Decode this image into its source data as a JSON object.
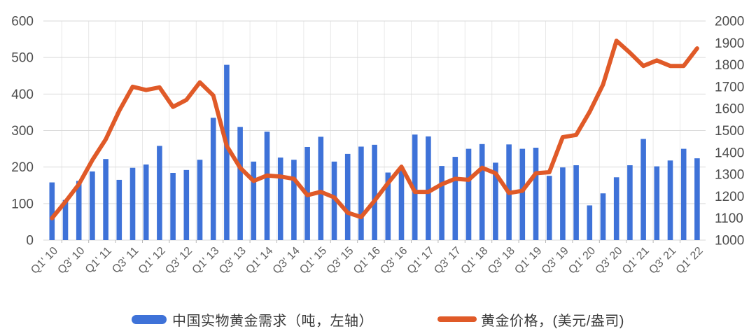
{
  "page": {
    "background": "#ffffff"
  },
  "legend": {
    "items": [
      {
        "label": "中国实物黄金需求（吨，左轴）",
        "color": "#3e72d8",
        "swatch": "bar"
      },
      {
        "label": "黄金价格，(美元/盎司)",
        "color": "#e05a28",
        "swatch": "line"
      }
    ]
  },
  "chart_data": {
    "type": "bar+line combo, dual axis",
    "title": "",
    "categories": [
      "Q1' 10",
      "Q2' 10",
      "Q3' 10",
      "Q4' 10",
      "Q1' 11",
      "Q2' 11",
      "Q3' 11",
      "Q4' 11",
      "Q1' 12",
      "Q2' 12",
      "Q3' 12",
      "Q4' 12",
      "Q1' 13",
      "Q2' 13",
      "Q3' 13",
      "Q4' 13",
      "Q1' 14",
      "Q2' 14",
      "Q3' 14",
      "Q4' 14",
      "Q1' 15",
      "Q2' 15",
      "Q3' 15",
      "Q4' 15",
      "Q1' 16",
      "Q2' 16",
      "Q3' 16",
      "Q4' 16",
      "Q1' 17",
      "Q2' 17",
      "Q3' 17",
      "Q4' 17",
      "Q1' 18",
      "Q2' 18",
      "Q3' 18",
      "Q4' 18",
      "Q1' 19",
      "Q2' 19",
      "Q3' 19",
      "Q4' 19",
      "Q1' 20",
      "Q2' 20",
      "Q3' 20",
      "Q4' 20",
      "Q1' 21",
      "Q2' 21",
      "Q3' 21",
      "Q4' 21",
      "Q1' 22"
    ],
    "x_tick_labels": [
      "Q1' 10",
      "Q3' 10",
      "Q1' 11",
      "Q3' 11",
      "Q1' 12",
      "Q3' 12",
      "Q1' 13",
      "Q3' 13",
      "Q1' 14",
      "Q3' 14",
      "Q1' 15",
      "Q3' 15",
      "Q1' 16",
      "Q3' 16",
      "Q1' 17",
      "Q3' 17",
      "Q1' 18",
      "Q3' 18",
      "Q1' 19",
      "Q3' 19",
      "Q1' 20",
      "Q3' 20",
      "Q1' 21",
      "Q3' 21",
      "Q1' 22"
    ],
    "series": [
      {
        "name": "中国实物黄金需求（吨，左轴）",
        "type": "bar",
        "axis": "left",
        "color": "#3e72d8",
        "values": [
          158,
          110,
          162,
          188,
          222,
          165,
          198,
          207,
          258,
          184,
          192,
          220,
          335,
          480,
          310,
          215,
          297,
          226,
          220,
          255,
          283,
          215,
          236,
          256,
          261,
          185,
          191,
          289,
          284,
          203,
          228,
          250,
          263,
          212,
          262,
          250,
          253,
          176,
          199,
          205,
          95,
          128,
          172,
          205,
          277,
          202,
          218,
          250,
          224
        ]
      },
      {
        "name": "黄金价格，(美元/盎司)",
        "type": "line",
        "axis": "right",
        "color": "#e05a28",
        "values": [
          1100,
          1175,
          1255,
          1365,
          1460,
          1590,
          1700,
          1685,
          1697,
          1608,
          1640,
          1720,
          1660,
          1430,
          1330,
          1270,
          1295,
          1290,
          1280,
          1205,
          1220,
          1195,
          1125,
          1105,
          1180,
          1260,
          1335,
          1220,
          1220,
          1255,
          1280,
          1275,
          1330,
          1305,
          1215,
          1225,
          1305,
          1310,
          1470,
          1480,
          1585,
          1710,
          1910,
          1855,
          1795,
          1820,
          1795,
          1795,
          1875
        ]
      }
    ],
    "y_left": {
      "min": 0,
      "max": 600,
      "ticks": [
        600,
        500,
        400,
        300,
        200,
        100,
        0
      ]
    },
    "y_right": {
      "min": 1000,
      "max": 2000,
      "ticks": [
        2000,
        1900,
        1800,
        1700,
        1600,
        1500,
        1400,
        1300,
        1200,
        1100,
        1000
      ]
    },
    "grid": {
      "horizontal": true,
      "vertical": true,
      "color": "#d9d9d9",
      "vertical_color": "#e8e8e8"
    },
    "axis_text_color": "#4d4d4d",
    "x_label_color": "#5f5f5f",
    "legend_position": "bottom-center",
    "background": "#ffffff"
  }
}
